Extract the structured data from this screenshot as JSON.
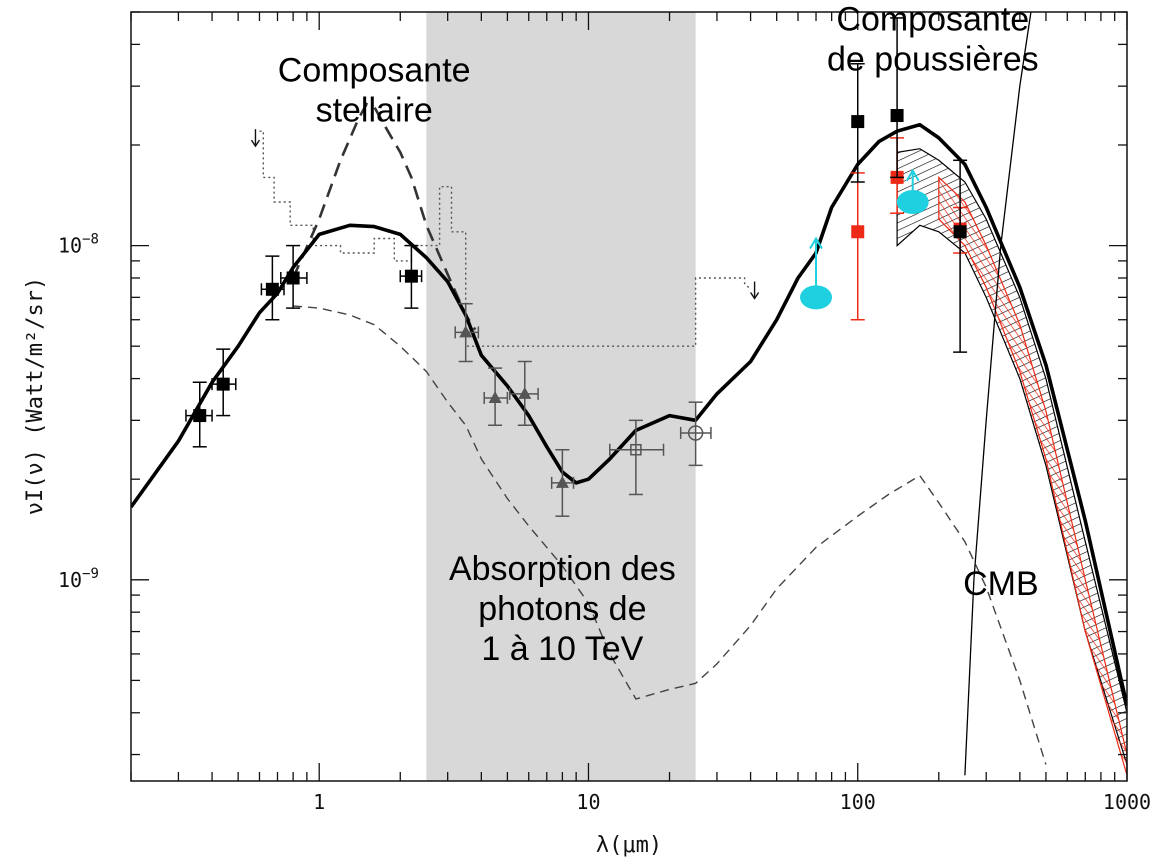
{
  "chart_data": {
    "type": "line",
    "title": "",
    "xlabel": "λ(μm)",
    "ylabel": "νI(ν) (Watt/m²/sr)",
    "x_scale": "log",
    "y_scale": "log",
    "xlim": [
      0.2,
      1000
    ],
    "ylim": [
      2.5e-10,
      5e-08
    ],
    "x_ticks": [
      {
        "value": 1,
        "label": "1"
      },
      {
        "value": 10,
        "label": "10"
      },
      {
        "value": 100,
        "label": "100"
      },
      {
        "value": 1000,
        "label": "1000"
      }
    ],
    "y_ticks": [
      {
        "value": 1e-09,
        "base": "10",
        "exp": "−9"
      },
      {
        "value": 1e-08,
        "base": "10",
        "exp": "−8"
      }
    ],
    "grid": false,
    "shaded_band": {
      "x0": 2.5,
      "x1": 25,
      "color": "#d8d8d8"
    },
    "colors": {
      "black": "#000000",
      "red": "#ee2a16",
      "cyan": "#1fd0e0",
      "gray": "#555555",
      "band": "#d8d8d8"
    },
    "series": [
      {
        "style": "thick-solid",
        "x": [
          0.2,
          0.3,
          0.4,
          0.5,
          0.6,
          0.7,
          0.8,
          1.0,
          1.3,
          1.6,
          2.0,
          2.5,
          3.0,
          3.5,
          4.0,
          5.0,
          6.0,
          7.0,
          8.0,
          9.0,
          10,
          12,
          15,
          20,
          25,
          30,
          40,
          50,
          60,
          70,
          80,
          100,
          120,
          140,
          170,
          200,
          250,
          300,
          400,
          500,
          700,
          1000
        ],
        "y": [
          1.65e-09,
          2.6e-09,
          3.9e-09,
          5e-09,
          6.3e-09,
          7.2e-09,
          8.6e-09,
          1.08e-08,
          1.15e-08,
          1.14e-08,
          1.08e-08,
          9.2e-09,
          7.8e-09,
          6.2e-09,
          4.7e-09,
          3.8e-09,
          3.1e-09,
          2.5e-09,
          2.1e-09,
          1.95e-09,
          2e-09,
          2.3e-09,
          2.8e-09,
          3.1e-09,
          3e-09,
          3.6e-09,
          4.5e-09,
          6e-09,
          8e-09,
          9.5e-09,
          1.3e-08,
          1.75e-08,
          2.05e-08,
          2.2e-08,
          2.3e-08,
          2.1e-08,
          1.75e-08,
          1.3e-08,
          7.5e-09,
          4.4e-09,
          1.5e-09,
          4.2e-10
        ]
      },
      {
        "style": "dashed-bump",
        "x": [
          0.8,
          1.0,
          1.2,
          1.4,
          1.5,
          1.6,
          1.8,
          2.0,
          2.2,
          2.5,
          3.0,
          3.5,
          3.8
        ],
        "y": [
          8e-09,
          1.2e-08,
          1.8e-08,
          2.4e-08,
          2.65e-08,
          2.6e-08,
          2.2e-08,
          1.9e-08,
          1.6e-08,
          1.15e-08,
          8.2e-09,
          6.2e-09,
          5.6e-09
        ]
      },
      {
        "style": "dashed-thin",
        "x": [
          0.8,
          1.0,
          1.3,
          1.6,
          2.0,
          2.5,
          3.0,
          3.5,
          4.0,
          5.0,
          6.0,
          7.0,
          8.0,
          10,
          12,
          15,
          20,
          25,
          30,
          40,
          50,
          70,
          100,
          130,
          170,
          200,
          250,
          300,
          400,
          500
        ],
        "y": [
          6.6e-09,
          6.5e-09,
          6.2e-09,
          5.8e-09,
          5e-09,
          4.2e-09,
          3.4e-09,
          2.9e-09,
          2.3e-09,
          1.75e-09,
          1.45e-09,
          1.25e-09,
          1.1e-09,
          8.5e-10,
          6e-10,
          4.4e-10,
          4.7e-10,
          4.9e-10,
          5.6e-10,
          7.3e-10,
          9.4e-10,
          1.25e-09,
          1.55e-09,
          1.8e-09,
          2.05e-09,
          1.7e-09,
          1.3e-09,
          9.5e-10,
          5e-10,
          2.8e-10
        ]
      },
      {
        "style": "dotted-step",
        "x": [
          0.6,
          0.62,
          0.62,
          0.68,
          0.68,
          0.78,
          0.78,
          0.95,
          0.95,
          1.2,
          1.2,
          1.6,
          1.6,
          1.9,
          1.9,
          2.2,
          2.2,
          2.8,
          2.8,
          3.1,
          3.1,
          3.5,
          3.5,
          25,
          25,
          30,
          30,
          38,
          38,
          40
        ],
        "y": [
          2.2e-08,
          2.2e-08,
          1.6e-08,
          1.6e-08,
          1.35e-08,
          1.35e-08,
          1.15e-08,
          1.15e-08,
          1e-08,
          1e-08,
          9.5e-09,
          9.5e-09,
          1.05e-08,
          1.05e-08,
          9e-09,
          9e-09,
          1e-08,
          1e-08,
          1.5e-08,
          1.5e-08,
          1.1e-08,
          1.1e-08,
          5e-09,
          5e-09,
          8e-09,
          8e-09,
          8e-09,
          8e-09,
          7.7e-09,
          7.4e-09
        ]
      },
      {
        "style": "cmb-line",
        "x": [
          250,
          270,
          300,
          340,
          400,
          480
        ],
        "y": [
          2.6e-10,
          1e-09,
          3e-09,
          1e-08,
          3e-08,
          8e-08
        ]
      }
    ],
    "hatched_band": {
      "x": [
        140,
        170,
        200,
        250,
        300,
        400,
        500,
        700,
        1000
      ],
      "y_upper": [
        1.9e-08,
        1.95e-08,
        1.8e-08,
        1.55e-08,
        1.2e-08,
        7e-09,
        4e-09,
        1.3e-09,
        4e-10
      ],
      "y_lower": [
        1e-08,
        1.15e-08,
        1.1e-08,
        9.5e-09,
        7e-09,
        4e-09,
        2.2e-09,
        7e-10,
        2.8e-10
      ]
    },
    "red_hatched_band": {
      "x": [
        200,
        250,
        300,
        400,
        500,
        700,
        1000
      ],
      "y_upper": [
        1.6e-08,
        1.35e-08,
        1e-08,
        5.8e-09,
        3.2e-09,
        1e-09,
        3e-10
      ],
      "y_lower": [
        1.2e-08,
        1e-08,
        7.5e-09,
        4.2e-09,
        2.3e-09,
        7e-10,
        2.6e-10
      ]
    },
    "points": [
      {
        "x": 0.36,
        "y": 3.1e-09,
        "marker": "square",
        "color": "#000000",
        "ylo": 2.5e-09,
        "yhi": 3.9e-09,
        "xlo": 0.32,
        "xhi": 0.4
      },
      {
        "x": 0.44,
        "y": 3.85e-09,
        "marker": "square",
        "color": "#000000",
        "ylo": 3.1e-09,
        "yhi": 4.9e-09,
        "xlo": 0.4,
        "xhi": 0.49
      },
      {
        "x": 0.67,
        "y": 7.4e-09,
        "marker": "square",
        "color": "#000000",
        "ylo": 6e-09,
        "yhi": 9.3e-09,
        "xlo": 0.61,
        "xhi": 0.74
      },
      {
        "x": 0.8,
        "y": 8e-09,
        "marker": "square",
        "color": "#000000",
        "ylo": 6.5e-09,
        "yhi": 1e-08,
        "xlo": 0.72,
        "xhi": 0.9
      },
      {
        "x": 2.2,
        "y": 8.1e-09,
        "marker": "square",
        "color": "#000000",
        "ylo": 6.5e-09,
        "yhi": 1e-08,
        "xlo": 2.0,
        "xhi": 2.4
      },
      {
        "x": 3.5,
        "y": 5.5e-09,
        "marker": "triangle",
        "color": "#555555",
        "ylo": 4.5e-09,
        "yhi": 6.7e-09,
        "xlo": 3.2,
        "xhi": 3.9
      },
      {
        "x": 4.5,
        "y": 3.5e-09,
        "marker": "triangle",
        "color": "#555555",
        "ylo": 2.9e-09,
        "yhi": 4.3e-09,
        "xlo": 4.1,
        "xhi": 5.0
      },
      {
        "x": 5.8,
        "y": 3.6e-09,
        "marker": "triangle",
        "color": "#555555",
        "ylo": 2.9e-09,
        "yhi": 4.5e-09,
        "xlo": 5.1,
        "xhi": 6.5
      },
      {
        "x": 8.0,
        "y": 1.95e-09,
        "marker": "triangle",
        "color": "#555555",
        "ylo": 1.55e-09,
        "yhi": 2.45e-09,
        "xlo": 7.3,
        "xhi": 8.8
      },
      {
        "x": 15,
        "y": 2.45e-09,
        "marker": "open-square",
        "color": "#555555",
        "ylo": 1.8e-09,
        "yhi": 3e-09,
        "xlo": 12,
        "xhi": 19
      },
      {
        "x": 25,
        "y": 2.75e-09,
        "marker": "open-circle",
        "color": "#555555",
        "ylo": 2.2e-09,
        "yhi": 3.4e-09,
        "xlo": 22,
        "xhi": 28.5
      },
      {
        "x": 100,
        "y": 1.1e-08,
        "marker": "square",
        "color": "#ee2a16",
        "ylo": 6e-09,
        "yhi": 1.65e-08
      },
      {
        "x": 140,
        "y": 1.6e-08,
        "marker": "square",
        "color": "#ee2a16",
        "ylo": 1.25e-08,
        "yhi": 2.1e-08
      },
      {
        "x": 240,
        "y": 1.12e-08,
        "marker": "square",
        "color": "#ee2a16",
        "ylo": 9.5e-09,
        "yhi": 1.3e-08
      },
      {
        "x": 100,
        "y": 2.35e-08,
        "marker": "square",
        "color": "#000000",
        "ylo": 1.55e-08,
        "yhi": 3.5e-08
      },
      {
        "x": 140,
        "y": 2.45e-08,
        "marker": "square",
        "color": "#000000",
        "ylo": 1.6e-08,
        "yhi": 4.8e-08
      },
      {
        "x": 240,
        "y": 1.1e-08,
        "marker": "square",
        "color": "#000000",
        "ylo": 4.8e-09,
        "yhi": 1.8e-08
      }
    ],
    "cyan_limits": [
      {
        "x": 70,
        "y": 7e-09,
        "arrow_to": 9.4e-09
      },
      {
        "x": 160,
        "y": 1.35e-08,
        "arrow_to": 1.5e-08
      }
    ],
    "upper_limit_arrows": [
      {
        "x": 0.6,
        "y": 2.2e-08
      },
      {
        "x": 40,
        "y": 7.7e-09
      }
    ],
    "annotations": [
      {
        "text": [
          "Composante",
          "stellaire"
        ],
        "anchor_x": 1.6,
        "anchor_y": 3.1e-08
      },
      {
        "text": [
          "Composante",
          "de poussières"
        ],
        "anchor_x": 190,
        "anchor_y": 4.4e-08
      },
      {
        "text": [
          "Absorption des",
          "photons de",
          "1 à 10 TeV"
        ],
        "anchor_x": 8.0,
        "anchor_y": 1e-09
      },
      {
        "text": [
          "CMB"
        ],
        "anchor_x": 340,
        "anchor_y": 9e-10
      }
    ]
  }
}
